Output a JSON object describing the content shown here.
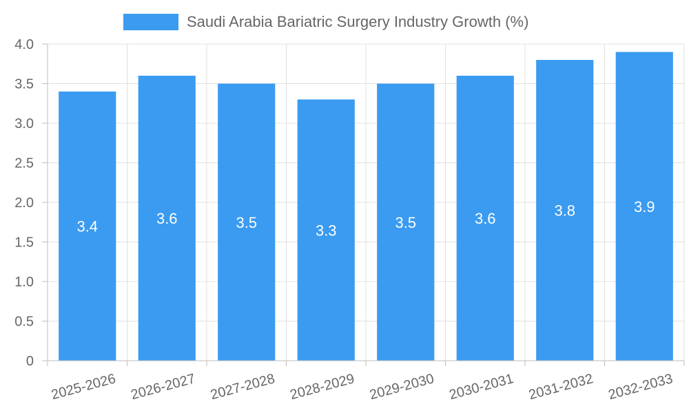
{
  "colors": {
    "bar": "#3a9bf0",
    "grid": "#e0e0e0",
    "axis": "#bdbdbd",
    "text": "#666666",
    "label": "#ffffff"
  },
  "chart_data": {
    "type": "bar",
    "title": "",
    "legend": {
      "label": "Saudi Arabia Bariatric Surgery Industry Growth (%)",
      "position": "top-center"
    },
    "categories": [
      "2025-2026",
      "2026-2027",
      "2027-2028",
      "2028-2029",
      "2029-2030",
      "2030-2031",
      "2031-2032",
      "2032-2033"
    ],
    "series": [
      {
        "name": "Saudi Arabia Bariatric Surgery Industry Growth (%)",
        "values": [
          3.4,
          3.6,
          3.5,
          3.3,
          3.5,
          3.6,
          3.8,
          3.9
        ]
      }
    ],
    "value_labels": [
      "3.4",
      "3.6",
      "3.5",
      "3.3",
      "3.5",
      "3.6",
      "3.8",
      "3.9"
    ],
    "y_ticks": [
      0,
      0.5,
      1.0,
      1.5,
      2.0,
      2.5,
      3.0,
      3.5,
      4.0
    ],
    "y_tick_labels": [
      "0",
      "0.5",
      "1.0",
      "1.5",
      "2.0",
      "2.5",
      "3.0",
      "3.5",
      "4.0"
    ],
    "ylim": [
      0,
      4
    ],
    "xlabel": "",
    "ylabel": "",
    "grid": true
  }
}
